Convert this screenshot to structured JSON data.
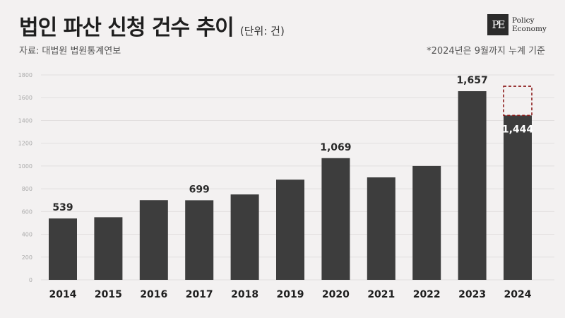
{
  "header": {
    "title": "법인 파산 신청 건수 추이",
    "unit": "(단위: 건)",
    "source": "자료: 대법원 법원통계연보",
    "note": "*2024년은 9월까지 누계 기준"
  },
  "logo": {
    "mark": "PE",
    "line1": "Policy",
    "line2": "Economy"
  },
  "colors": {
    "bar": "#3d3d3d",
    "grid": "#e2dfdf",
    "dashed_box": "#8b1a1a",
    "background": "#f3f1f1"
  },
  "chart_data": {
    "type": "bar",
    "categories": [
      "2014",
      "2015",
      "2016",
      "2017",
      "2018",
      "2019",
      "2020",
      "2021",
      "2022",
      "2023",
      "2024"
    ],
    "values": [
      539,
      550,
      700,
      699,
      750,
      880,
      1069,
      900,
      1000,
      1657,
      1444
    ],
    "data_labels": [
      {
        "category": "2014",
        "text": "539"
      },
      {
        "category": "2017",
        "text": "699"
      },
      {
        "category": "2020",
        "text": "1,069"
      },
      {
        "category": "2023",
        "text": "1,657"
      },
      {
        "category": "2024",
        "text": "1,444"
      }
    ],
    "y_ticks": [
      "0",
      "200",
      "400",
      "600",
      "800",
      "1000",
      "1200",
      "1400",
      "1600",
      "1800"
    ],
    "ylim": [
      0,
      1800
    ],
    "highlight": {
      "category": "2024",
      "projected_value": 1700,
      "style": "dashed"
    },
    "grid": true,
    "title": "법인 파산 신청 건수 추이",
    "xlabel": "",
    "ylabel": ""
  }
}
